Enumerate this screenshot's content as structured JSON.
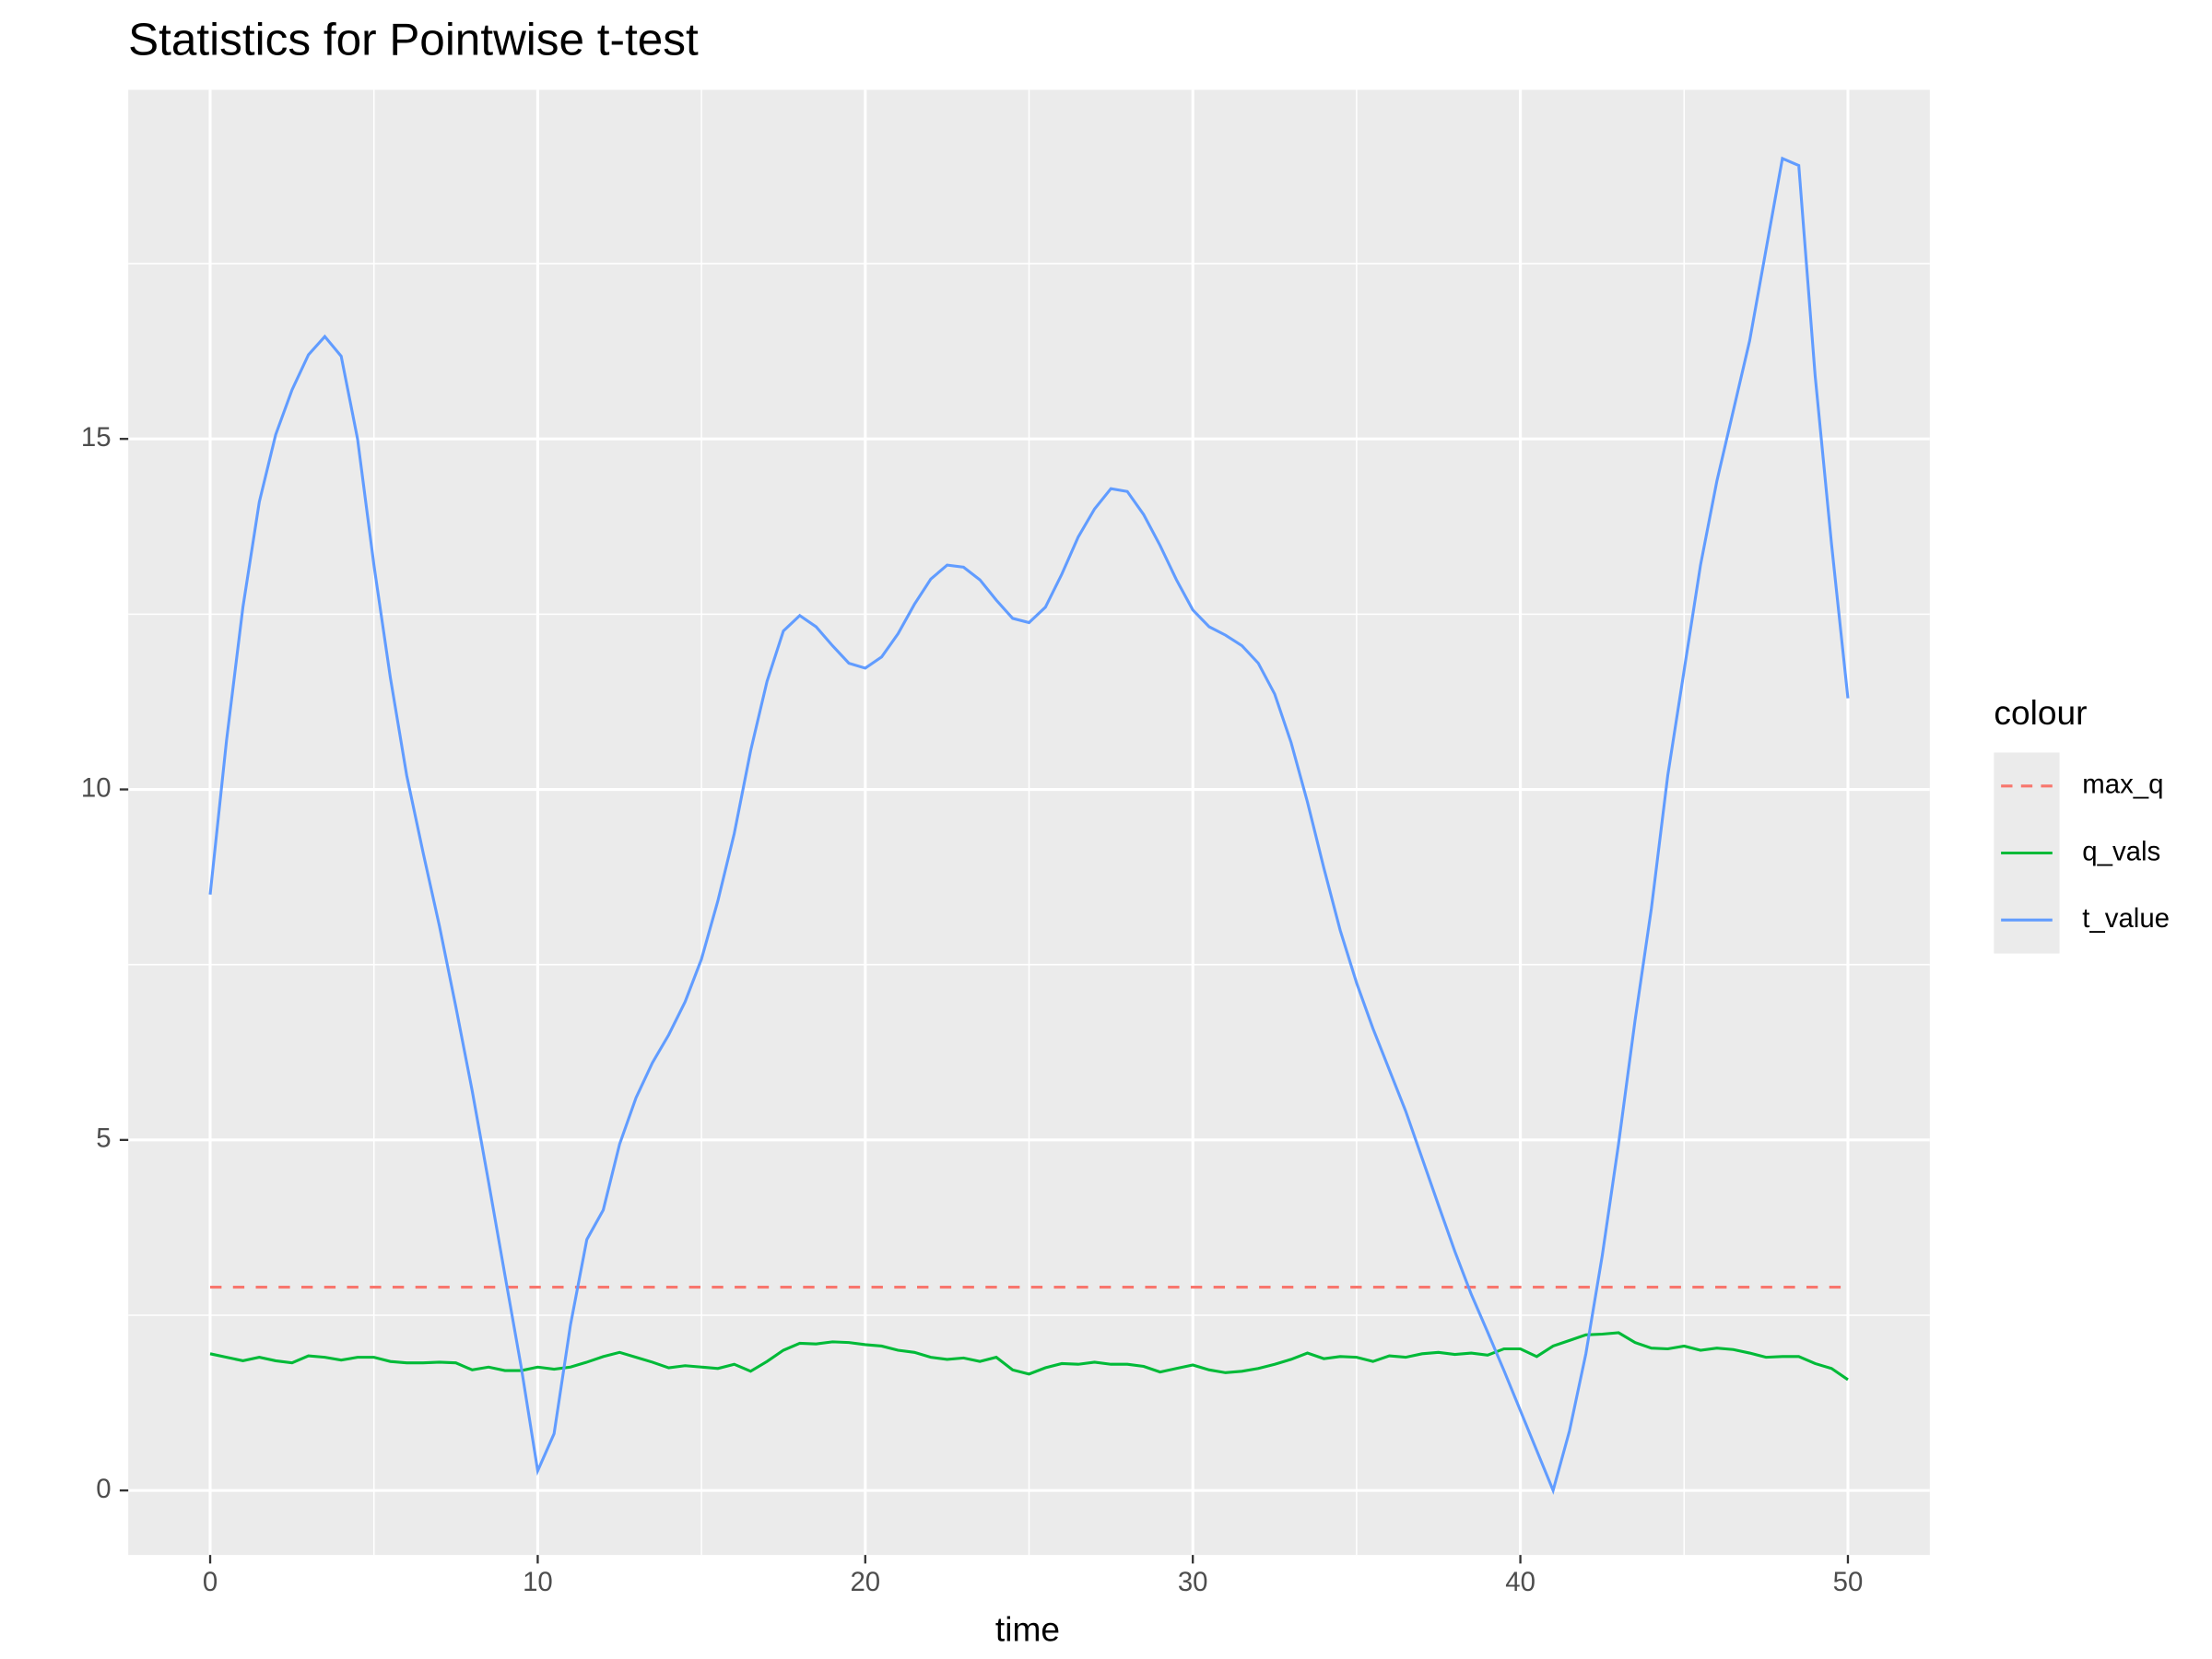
{
  "chart_data": {
    "type": "line",
    "title": "Statistics for Pointwise t-test",
    "x_label": "time",
    "legend_title": "colour",
    "legend_position": "right",
    "grid": true,
    "panel_background": "#ebebeb",
    "xlim": [
      -2.5,
      52.5
    ],
    "ylim": [
      -0.92,
      19.98
    ],
    "xticks": [
      0,
      10,
      20,
      30,
      40,
      50
    ],
    "yticks": [
      0,
      5,
      10,
      15
    ],
    "x_minor_breaks": [
      5,
      15,
      25,
      35,
      45
    ],
    "y_minor_breaks": [
      2.5,
      7.5,
      12.5,
      17.5
    ],
    "x": [
      0,
      0.5,
      1,
      1.5,
      2,
      2.5,
      3,
      3.5,
      4,
      4.5,
      5,
      5.5,
      6,
      6.5,
      7,
      7.5,
      8,
      8.5,
      9,
      9.5,
      10,
      10.5,
      11,
      11.5,
      12,
      12.5,
      13,
      13.5,
      14,
      14.5,
      15,
      15.5,
      16,
      16.5,
      17,
      17.5,
      18,
      18.5,
      19,
      19.5,
      20,
      20.5,
      21,
      21.5,
      22,
      22.5,
      23,
      23.5,
      24,
      24.5,
      25,
      25.5,
      26,
      26.5,
      27,
      27.5,
      28,
      28.5,
      29,
      29.5,
      30,
      30.5,
      31,
      31.5,
      32,
      32.5,
      33,
      33.5,
      34,
      34.5,
      35,
      35.5,
      36,
      36.5,
      37,
      37.5,
      38,
      38.5,
      39,
      39.5,
      40,
      40.5,
      41,
      41.5,
      42,
      42.5,
      43,
      43.5,
      44,
      44.5,
      45,
      45.5,
      46,
      46.5,
      47,
      47.5,
      48,
      48.5,
      49,
      49.5,
      50
    ],
    "series": [
      {
        "name": "max_q",
        "color": "#F8766D",
        "linetype": "dashed",
        "values": [
          2.9,
          2.9,
          2.9,
          2.9,
          2.9,
          2.9,
          2.9,
          2.9,
          2.9,
          2.9,
          2.9,
          2.9,
          2.9,
          2.9,
          2.9,
          2.9,
          2.9,
          2.9,
          2.9,
          2.9,
          2.9,
          2.9,
          2.9,
          2.9,
          2.9,
          2.9,
          2.9,
          2.9,
          2.9,
          2.9,
          2.9,
          2.9,
          2.9,
          2.9,
          2.9,
          2.9,
          2.9,
          2.9,
          2.9,
          2.9,
          2.9,
          2.9,
          2.9,
          2.9,
          2.9,
          2.9,
          2.9,
          2.9,
          2.9,
          2.9,
          2.9,
          2.9,
          2.9,
          2.9,
          2.9,
          2.9,
          2.9,
          2.9,
          2.9,
          2.9,
          2.9,
          2.9,
          2.9,
          2.9,
          2.9,
          2.9,
          2.9,
          2.9,
          2.9,
          2.9,
          2.9,
          2.9,
          2.9,
          2.9,
          2.9,
          2.9,
          2.9,
          2.9,
          2.9,
          2.9,
          2.9,
          2.9,
          2.9,
          2.9,
          2.9,
          2.9,
          2.9,
          2.9,
          2.9,
          2.9,
          2.9,
          2.9,
          2.9,
          2.9,
          2.9,
          2.9,
          2.9,
          2.9,
          2.9,
          2.9,
          2.9
        ]
      },
      {
        "name": "q_vals",
        "color": "#00BA38",
        "linetype": "solid",
        "values": [
          1.95,
          1.9,
          1.85,
          1.9,
          1.85,
          1.82,
          1.92,
          1.9,
          1.86,
          1.9,
          1.9,
          1.84,
          1.82,
          1.82,
          1.83,
          1.82,
          1.72,
          1.76,
          1.71,
          1.71,
          1.76,
          1.73,
          1.76,
          1.83,
          1.91,
          1.97,
          1.9,
          1.83,
          1.75,
          1.78,
          1.76,
          1.74,
          1.8,
          1.7,
          1.84,
          2.0,
          2.1,
          2.09,
          2.12,
          2.11,
          2.08,
          2.06,
          2.0,
          1.97,
          1.9,
          1.87,
          1.89,
          1.84,
          1.9,
          1.72,
          1.66,
          1.75,
          1.81,
          1.8,
          1.83,
          1.8,
          1.8,
          1.77,
          1.69,
          1.74,
          1.79,
          1.72,
          1.68,
          1.7,
          1.74,
          1.8,
          1.87,
          1.96,
          1.88,
          1.91,
          1.9,
          1.84,
          1.92,
          1.9,
          1.95,
          1.97,
          1.94,
          1.96,
          1.93,
          2.02,
          2.02,
          1.91,
          2.06,
          2.14,
          2.22,
          2.23,
          2.25,
          2.11,
          2.03,
          2.02,
          2.06,
          2.0,
          2.03,
          2.01,
          1.96,
          1.9,
          1.91,
          1.91,
          1.81,
          1.74,
          1.58
        ]
      },
      {
        "name": "t_value",
        "color": "#619CFF",
        "linetype": "solid",
        "values": [
          8.5,
          10.7,
          12.6,
          14.1,
          15.06,
          15.7,
          16.2,
          16.46,
          16.18,
          15.0,
          13.2,
          11.6,
          10.2,
          9.1,
          8.05,
          6.9,
          5.7,
          4.4,
          3.07,
          1.75,
          0.28,
          0.81,
          2.36,
          3.58,
          4.0,
          4.94,
          5.6,
          6.1,
          6.5,
          6.97,
          7.58,
          8.41,
          9.37,
          10.55,
          11.54,
          12.26,
          12.48,
          12.32,
          12.05,
          11.8,
          11.73,
          11.89,
          12.22,
          12.64,
          13.0,
          13.2,
          13.17,
          12.99,
          12.7,
          12.44,
          12.38,
          12.6,
          13.07,
          13.6,
          14.0,
          14.29,
          14.25,
          13.92,
          13.48,
          12.99,
          12.56,
          12.32,
          12.2,
          12.05,
          11.8,
          11.36,
          10.67,
          9.82,
          8.88,
          7.99,
          7.24,
          6.59,
          6.0,
          5.41,
          4.74,
          4.07,
          3.41,
          2.8,
          2.26,
          1.71,
          1.14,
          0.57,
          0.0,
          0.85,
          1.95,
          3.35,
          4.95,
          6.7,
          8.3,
          10.2,
          11.7,
          13.2,
          14.4,
          15.4,
          16.4,
          17.7,
          19.0,
          18.9,
          15.9,
          13.5,
          11.3
        ]
      }
    ]
  }
}
